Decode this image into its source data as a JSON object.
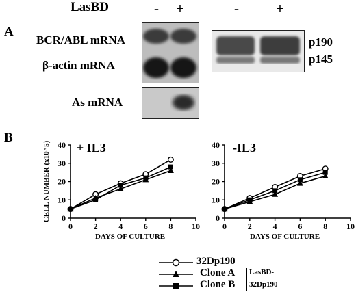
{
  "panel_a": {
    "label": "A",
    "treatment_label": "LasBD",
    "lanes": [
      "-",
      "+"
    ],
    "blot_rows": [
      "BCR/ABL mRNA",
      "β-actin mRNA",
      "As mRNA"
    ],
    "protein_labels": [
      "p190",
      "p145"
    ]
  },
  "panel_b": {
    "label": "B",
    "legend": {
      "entries": [
        "32Dp190",
        "Clone A",
        "Clone B"
      ],
      "group_label_line1": "LasBD-",
      "group_label_line2": "32Dp190"
    }
  },
  "chart_data": [
    {
      "type": "line",
      "title": "+ IL3",
      "xlabel": "DAYS OF CULTURE",
      "ylabel": "CELL NUMBER (x10^5)",
      "xlim": [
        0,
        10
      ],
      "ylim": [
        0,
        40
      ],
      "xticks": [
        0,
        2,
        4,
        6,
        8,
        10
      ],
      "yticks": [
        0,
        10,
        20,
        30,
        40
      ],
      "x": [
        0,
        2,
        4,
        6,
        8
      ],
      "series": [
        {
          "name": "32Dp190",
          "marker": "open-circle",
          "values": [
            5,
            13,
            19,
            24,
            32
          ]
        },
        {
          "name": "Clone A",
          "marker": "triangle",
          "values": [
            5,
            11,
            16,
            21,
            26
          ]
        },
        {
          "name": "Clone B",
          "marker": "square",
          "values": [
            5,
            10,
            18,
            22,
            28
          ]
        }
      ]
    },
    {
      "type": "line",
      "title": "-IL3",
      "xlabel": "DAYS OF CULTURE",
      "ylabel": "",
      "xlim": [
        0,
        10
      ],
      "ylim": [
        0,
        40
      ],
      "xticks": [
        0,
        2,
        4,
        6,
        8,
        10
      ],
      "yticks": [
        0,
        10,
        20,
        30,
        40
      ],
      "x": [
        0,
        2,
        4,
        6,
        8
      ],
      "series": [
        {
          "name": "32Dp190",
          "marker": "open-circle",
          "values": [
            5,
            11,
            17,
            23,
            27
          ]
        },
        {
          "name": "Clone A",
          "marker": "triangle",
          "values": [
            5,
            9,
            13,
            19,
            23
          ]
        },
        {
          "name": "Clone B",
          "marker": "square",
          "values": [
            5,
            10,
            15,
            21,
            25
          ]
        }
      ]
    }
  ]
}
